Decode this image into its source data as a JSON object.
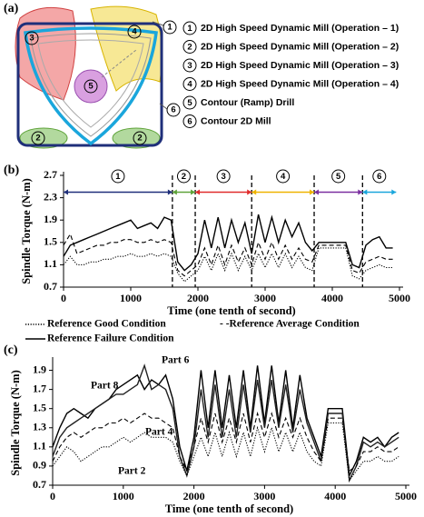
{
  "panel_labels": [
    "(a)",
    "(b)",
    "(c)"
  ],
  "diagram": {
    "operations": [
      {
        "number": "1",
        "label": "2D High Speed Dynamic Mill (Operation – 1)",
        "color": "#1f2f7a"
      },
      {
        "number": "2",
        "label": "2D High Speed Dynamic Mill (Operation – 2)",
        "color": "#5fa33a"
      },
      {
        "number": "3",
        "label": "2D High Speed Dynamic Mill (Operation – 3)",
        "color": "#e02b2b"
      },
      {
        "number": "4",
        "label": "2D High Speed Dynamic Mill (Operation – 4)",
        "color": "#efb400"
      },
      {
        "number": "5",
        "label": "Contour (Ramp) Drill",
        "color": "#7a2fa0"
      },
      {
        "number": "6",
        "label": "Contour 2D Mill",
        "color": "#1aa6dc"
      }
    ]
  },
  "chart_data": [
    {
      "type": "line",
      "x_label": "Time (one tenth of second)",
      "y_label": "Spindle Torque (N-m)",
      "x": [
        0,
        100,
        200,
        300,
        400,
        500,
        600,
        700,
        800,
        900,
        1000,
        1100,
        1200,
        1300,
        1400,
        1500,
        1600,
        1700,
        1800,
        1900,
        2000,
        2100,
        2200,
        2300,
        2400,
        2500,
        2600,
        2700,
        2800,
        2900,
        3000,
        3100,
        3200,
        3300,
        3400,
        3500,
        3600,
        3700,
        3800,
        3900,
        4000,
        4100,
        4200,
        4300,
        4400,
        4500,
        4600,
        4700,
        4800,
        4900
      ],
      "xlim": [
        0,
        5000
      ],
      "xticks": [
        0,
        1000,
        2000,
        3000,
        4000,
        5000
      ],
      "ylim": [
        0.7,
        2.7
      ],
      "yticks": [
        0.7,
        1.1,
        1.5,
        1.9,
        2.3,
        2.7
      ],
      "legend": "bottom",
      "segment_bounds": [
        0,
        1620,
        1960,
        2800,
        3730,
        4450,
        4950
      ],
      "segment_level": 2.4,
      "series": [
        {
          "name": "Reference Good Condition",
          "color": "#000000",
          "dash": "dotted",
          "values": [
            1.1,
            1.25,
            1.1,
            1.1,
            1.15,
            1.15,
            1.2,
            1.2,
            1.25,
            1.25,
            1.3,
            1.25,
            1.25,
            1.3,
            1.25,
            1.3,
            1.25,
            0.95,
            0.8,
            0.9,
            1.0,
            1.25,
            1.0,
            1.3,
            1.0,
            1.3,
            1.0,
            1.25,
            1.0,
            1.3,
            1.05,
            1.3,
            1.05,
            1.3,
            1.05,
            1.25,
            1.05,
            1.0,
            1.4,
            1.4,
            1.4,
            1.4,
            1.4,
            0.9,
            0.85,
            1.0,
            1.05,
            1.1,
            1.05,
            1.05
          ]
        },
        {
          "name": "- -Reference Average Condition",
          "color": "#000000",
          "dash": "dashed",
          "values": [
            1.45,
            1.65,
            1.3,
            1.35,
            1.4,
            1.45,
            1.45,
            1.5,
            1.5,
            1.55,
            1.55,
            1.5,
            1.5,
            1.55,
            1.5,
            1.55,
            1.5,
            1.0,
            0.9,
            1.0,
            1.1,
            1.4,
            1.1,
            1.45,
            1.1,
            1.45,
            1.15,
            1.4,
            1.1,
            1.5,
            1.2,
            1.5,
            1.2,
            1.45,
            1.2,
            1.4,
            1.2,
            1.15,
            1.45,
            1.45,
            1.45,
            1.45,
            1.45,
            1.0,
            0.95,
            1.15,
            1.2,
            1.25,
            1.2,
            1.2
          ]
        },
        {
          "name": "Reference Failure Condition",
          "color": "#000000",
          "dash": "solid",
          "values": [
            1.25,
            1.45,
            1.5,
            1.55,
            1.6,
            1.65,
            1.7,
            1.75,
            1.8,
            1.85,
            1.9,
            1.75,
            1.8,
            1.85,
            1.75,
            1.95,
            1.9,
            1.15,
            1.0,
            1.1,
            1.3,
            1.9,
            1.4,
            1.95,
            1.4,
            1.9,
            1.5,
            1.85,
            1.3,
            2.0,
            1.5,
            1.95,
            1.5,
            1.9,
            1.6,
            1.85,
            1.5,
            1.35,
            1.5,
            1.5,
            1.5,
            1.5,
            1.5,
            1.1,
            1.05,
            1.45,
            1.55,
            1.6,
            1.4,
            1.4
          ]
        }
      ]
    },
    {
      "type": "line",
      "x_label": "Time (one tenth of second)",
      "y_label": "Spindle Torque (N-m)",
      "x": [
        0,
        100,
        200,
        300,
        400,
        500,
        600,
        700,
        800,
        900,
        1000,
        1100,
        1200,
        1300,
        1400,
        1500,
        1600,
        1700,
        1800,
        1900,
        2000,
        2100,
        2200,
        2300,
        2400,
        2500,
        2600,
        2700,
        2800,
        2900,
        3000,
        3100,
        3200,
        3300,
        3400,
        3500,
        3600,
        3700,
        3800,
        3900,
        4000,
        4100,
        4200,
        4300,
        4400,
        4500,
        4600,
        4700,
        4800,
        4900
      ],
      "xlim": [
        0,
        5000
      ],
      "xticks": [
        0,
        1000,
        2000,
        3000,
        4000,
        5000
      ],
      "ylim": [
        0.7,
        2.0
      ],
      "yticks": [
        0.7,
        0.9,
        1.1,
        1.3,
        1.5,
        1.7,
        1.9
      ],
      "legend": "inline",
      "series": [
        {
          "name": "Part 8",
          "color": "#000000",
          "dash": "solid",
          "values": [
            1.1,
            1.3,
            1.45,
            1.5,
            1.45,
            1.4,
            1.5,
            1.55,
            1.6,
            1.7,
            1.75,
            1.8,
            1.85,
            1.7,
            1.8,
            1.75,
            1.85,
            1.6,
            1.1,
            0.85,
            1.2,
            1.9,
            1.3,
            1.9,
            1.3,
            1.85,
            1.3,
            1.9,
            1.3,
            1.95,
            1.35,
            1.95,
            1.35,
            1.9,
            1.3,
            1.85,
            1.4,
            1.2,
            1.0,
            1.5,
            1.5,
            1.5,
            0.8,
            0.95,
            1.2,
            1.15,
            1.2,
            1.1,
            1.2,
            1.25
          ]
        },
        {
          "name": "Part 6",
          "color": "#222222",
          "dash": "solid",
          "values": [
            1.0,
            1.2,
            1.3,
            1.35,
            1.4,
            1.45,
            1.5,
            1.55,
            1.6,
            1.65,
            1.65,
            1.7,
            1.75,
            1.95,
            1.7,
            1.75,
            1.7,
            1.5,
            1.0,
            0.8,
            1.1,
            1.7,
            1.2,
            1.75,
            1.2,
            1.7,
            1.2,
            1.75,
            1.25,
            1.8,
            1.3,
            1.8,
            1.3,
            1.75,
            1.25,
            1.7,
            1.35,
            1.15,
            0.95,
            1.45,
            1.45,
            1.45,
            0.75,
            0.9,
            1.15,
            1.1,
            1.15,
            1.1,
            1.15,
            1.2
          ]
        },
        {
          "name": "Part 4",
          "color": "#000000",
          "dash": "dashed",
          "values": [
            0.95,
            1.1,
            1.2,
            1.25,
            1.2,
            1.25,
            1.3,
            1.3,
            1.35,
            1.35,
            1.4,
            1.35,
            1.4,
            1.45,
            1.4,
            1.4,
            1.35,
            1.3,
            1.0,
            0.85,
            1.1,
            1.4,
            1.15,
            1.45,
            1.15,
            1.4,
            1.15,
            1.45,
            1.15,
            1.45,
            1.2,
            1.45,
            1.2,
            1.4,
            1.2,
            1.4,
            1.2,
            1.05,
            0.95,
            1.4,
            1.4,
            1.4,
            0.85,
            0.9,
            1.05,
            1.05,
            1.1,
            1.05,
            1.05,
            1.1
          ]
        },
        {
          "name": "Part 2",
          "color": "#000000",
          "dash": "dotted",
          "values": [
            0.9,
            1.0,
            1.1,
            1.05,
            0.95,
            1.0,
            1.05,
            1.1,
            1.1,
            1.15,
            1.2,
            1.15,
            1.2,
            1.25,
            1.2,
            1.2,
            1.2,
            1.15,
            0.95,
            0.8,
            1.0,
            1.2,
            1.0,
            1.25,
            1.0,
            1.25,
            1.0,
            1.25,
            1.0,
            1.3,
            1.05,
            1.3,
            1.05,
            1.25,
            1.05,
            1.25,
            1.05,
            0.95,
            0.9,
            1.35,
            1.35,
            1.35,
            0.75,
            0.85,
            0.95,
            0.95,
            1.0,
            0.95,
            0.95,
            1.0
          ]
        }
      ]
    }
  ]
}
